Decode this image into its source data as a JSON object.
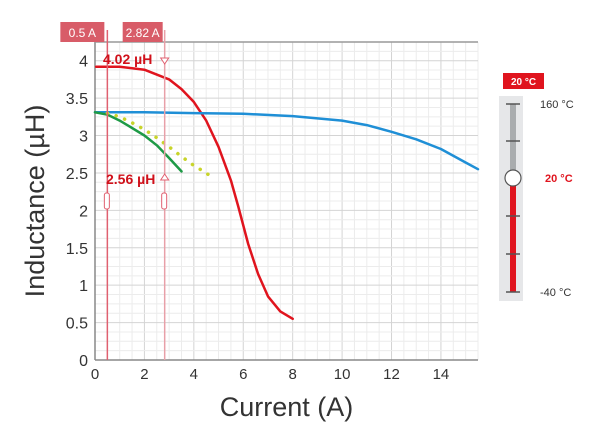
{
  "chart_data": {
    "type": "line",
    "xlabel": "Current (A)",
    "ylabel": "Inductance (µH)",
    "xlim": [
      0,
      15.5
    ],
    "ylim": [
      0,
      4.25
    ],
    "xticks": [
      0,
      2,
      4,
      6,
      8,
      10,
      12,
      14
    ],
    "yticks": [
      0,
      0.5,
      1,
      1.5,
      2,
      2.5,
      3,
      3.5,
      4
    ],
    "ytick_labels": [
      "0",
      "0.5",
      "1",
      "1.5",
      "2",
      "2.5",
      "3",
      "3.5",
      "4"
    ],
    "grid": true,
    "series": [
      {
        "name": "red",
        "color": "#e0141e",
        "style": "solid",
        "x": [
          0.05,
          1,
          2,
          3,
          3.5,
          4,
          4.5,
          5,
          5.5,
          5.8,
          6.2,
          6.6,
          7,
          7.5,
          8
        ],
        "y": [
          3.92,
          3.92,
          3.88,
          3.75,
          3.62,
          3.45,
          3.2,
          2.85,
          2.4,
          2.05,
          1.55,
          1.15,
          0.85,
          0.65,
          0.55
        ]
      },
      {
        "name": "blue",
        "color": "#1f8fd6",
        "style": "solid",
        "x": [
          0,
          2,
          4,
          6,
          8,
          10,
          11,
          12,
          13,
          14,
          15,
          15.5
        ],
        "y": [
          3.31,
          3.31,
          3.3,
          3.29,
          3.26,
          3.2,
          3.14,
          3.05,
          2.95,
          2.82,
          2.64,
          2.55
        ]
      },
      {
        "name": "green",
        "color": "#1e9a46",
        "style": "solid",
        "x": [
          0,
          0.5,
          1,
          1.5,
          2,
          2.5,
          3,
          3.5
        ],
        "y": [
          3.31,
          3.28,
          3.2,
          3.1,
          3.0,
          2.87,
          2.7,
          2.52
        ]
      },
      {
        "name": "yellow",
        "color": "#c8d42a",
        "style": "dotted",
        "x": [
          0.5,
          1,
          1.5,
          2,
          2.5,
          3,
          3.5,
          4,
          4.5,
          4.8
        ],
        "y": [
          3.3,
          3.25,
          3.17,
          3.08,
          2.97,
          2.85,
          2.72,
          2.6,
          2.5,
          2.42
        ]
      }
    ],
    "cursors": [
      {
        "label": "0.5 A",
        "x": 0.5,
        "value_label": "4.02 µH"
      },
      {
        "label": "2.82 A",
        "x": 2.82,
        "value_label": "2.56 µH"
      }
    ]
  },
  "temperature": {
    "selected": "20 °C",
    "max": "160 °C",
    "current": "20 °C",
    "min": "-40 °C",
    "range": [
      -40,
      160
    ],
    "value": 20,
    "accent": "#e0141e"
  }
}
